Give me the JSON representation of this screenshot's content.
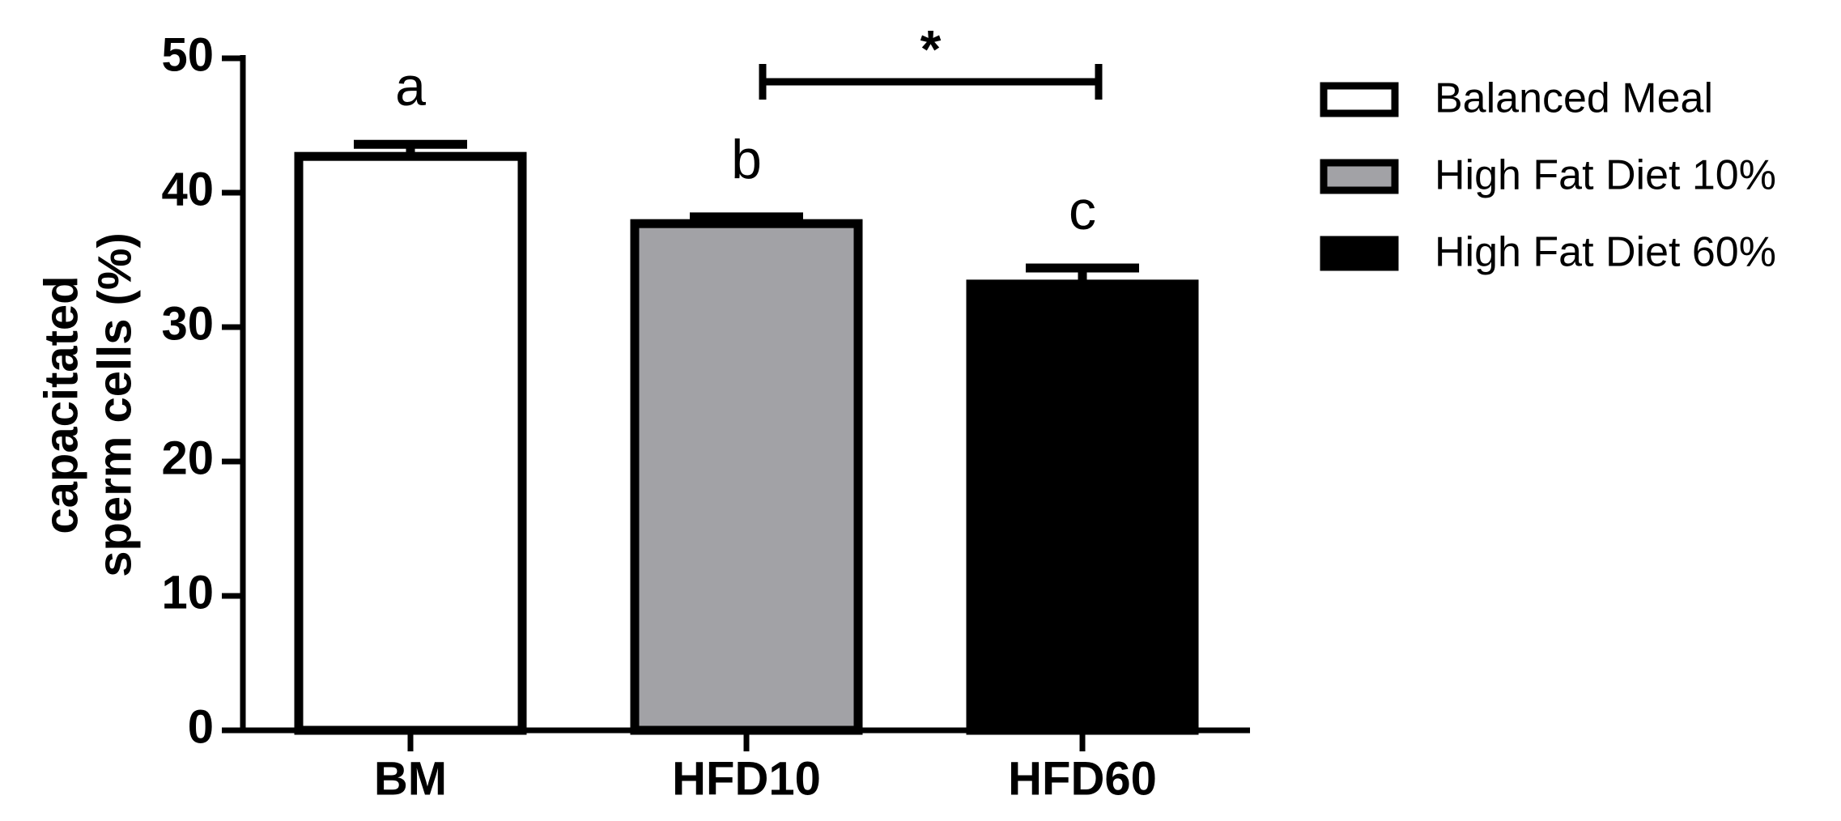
{
  "chart_data": {
    "type": "bar",
    "ylabel": [
      "capacitated",
      "sperm cells (%)"
    ],
    "categories": [
      "BM",
      "HFD10",
      "HFD60"
    ],
    "series": [
      {
        "name": "Balanced Meal",
        "color": "#ffffff",
        "values": [
          42.7,
          null,
          null
        ],
        "errors": [
          0.9,
          null,
          null
        ]
      },
      {
        "name": "High Fat Diet 10%",
        "color": "#a2a2a6",
        "values": [
          null,
          37.7,
          null
        ],
        "errors": [
          null,
          0.5,
          null
        ]
      },
      {
        "name": "High Fat Diet 60%",
        "color": "#000000",
        "values": [
          null,
          null,
          33.2
        ],
        "errors": [
          null,
          null,
          1.2
        ]
      }
    ],
    "group_labels": [
      "a",
      "b",
      "c"
    ],
    "significance_label": "*",
    "ylim": [
      0,
      50
    ],
    "yticks": [
      0,
      10,
      20,
      30,
      40,
      50
    ]
  }
}
